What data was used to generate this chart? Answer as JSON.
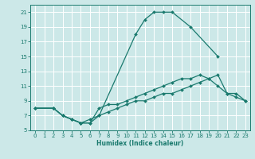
{
  "xlabel": "Humidex (Indice chaleur)",
  "xlim": [
    -0.5,
    23.5
  ],
  "ylim": [
    5,
    22
  ],
  "xticks": [
    0,
    1,
    2,
    3,
    4,
    5,
    6,
    7,
    8,
    9,
    10,
    11,
    12,
    13,
    14,
    15,
    16,
    17,
    18,
    19,
    20,
    21,
    22,
    23
  ],
  "yticks": [
    5,
    7,
    9,
    11,
    13,
    15,
    17,
    19,
    21
  ],
  "bg_color": "#cce8e8",
  "grid_color": "#ffffff",
  "line_color": "#1a7a6e",
  "line1_x": [
    0,
    2,
    3,
    4,
    5,
    6,
    7,
    11,
    12,
    13,
    14,
    15,
    17,
    20
  ],
  "line1_y": [
    8,
    8,
    7,
    6.5,
    6,
    6.5,
    7,
    18,
    20,
    21,
    21,
    21,
    19,
    15
  ],
  "line2_x": [
    0,
    2,
    3,
    4,
    5,
    6,
    7,
    8,
    9,
    10,
    11,
    12,
    13,
    14,
    15,
    16,
    17,
    18,
    19,
    20,
    21,
    22,
    23
  ],
  "line2_y": [
    8,
    8,
    7,
    6.5,
    6,
    6,
    8,
    8.5,
    8.5,
    9,
    9.5,
    10,
    10.5,
    11,
    11.5,
    12,
    12,
    12.5,
    12,
    11,
    10,
    10,
    9
  ],
  "line3_x": [
    0,
    2,
    3,
    4,
    5,
    6,
    7,
    8,
    9,
    10,
    11,
    12,
    13,
    14,
    15,
    16,
    17,
    18,
    19,
    20,
    21,
    22,
    23
  ],
  "line3_y": [
    8,
    8,
    7,
    6.5,
    6,
    6,
    7,
    7.5,
    8,
    8.5,
    9,
    9,
    9.5,
    10,
    10,
    10.5,
    11,
    11.5,
    12,
    12.5,
    10,
    9.5,
    9
  ],
  "marker": "D",
  "markersize": 2.0,
  "linewidth": 0.9,
  "tick_fontsize": 5,
  "xlabel_fontsize": 5.5
}
